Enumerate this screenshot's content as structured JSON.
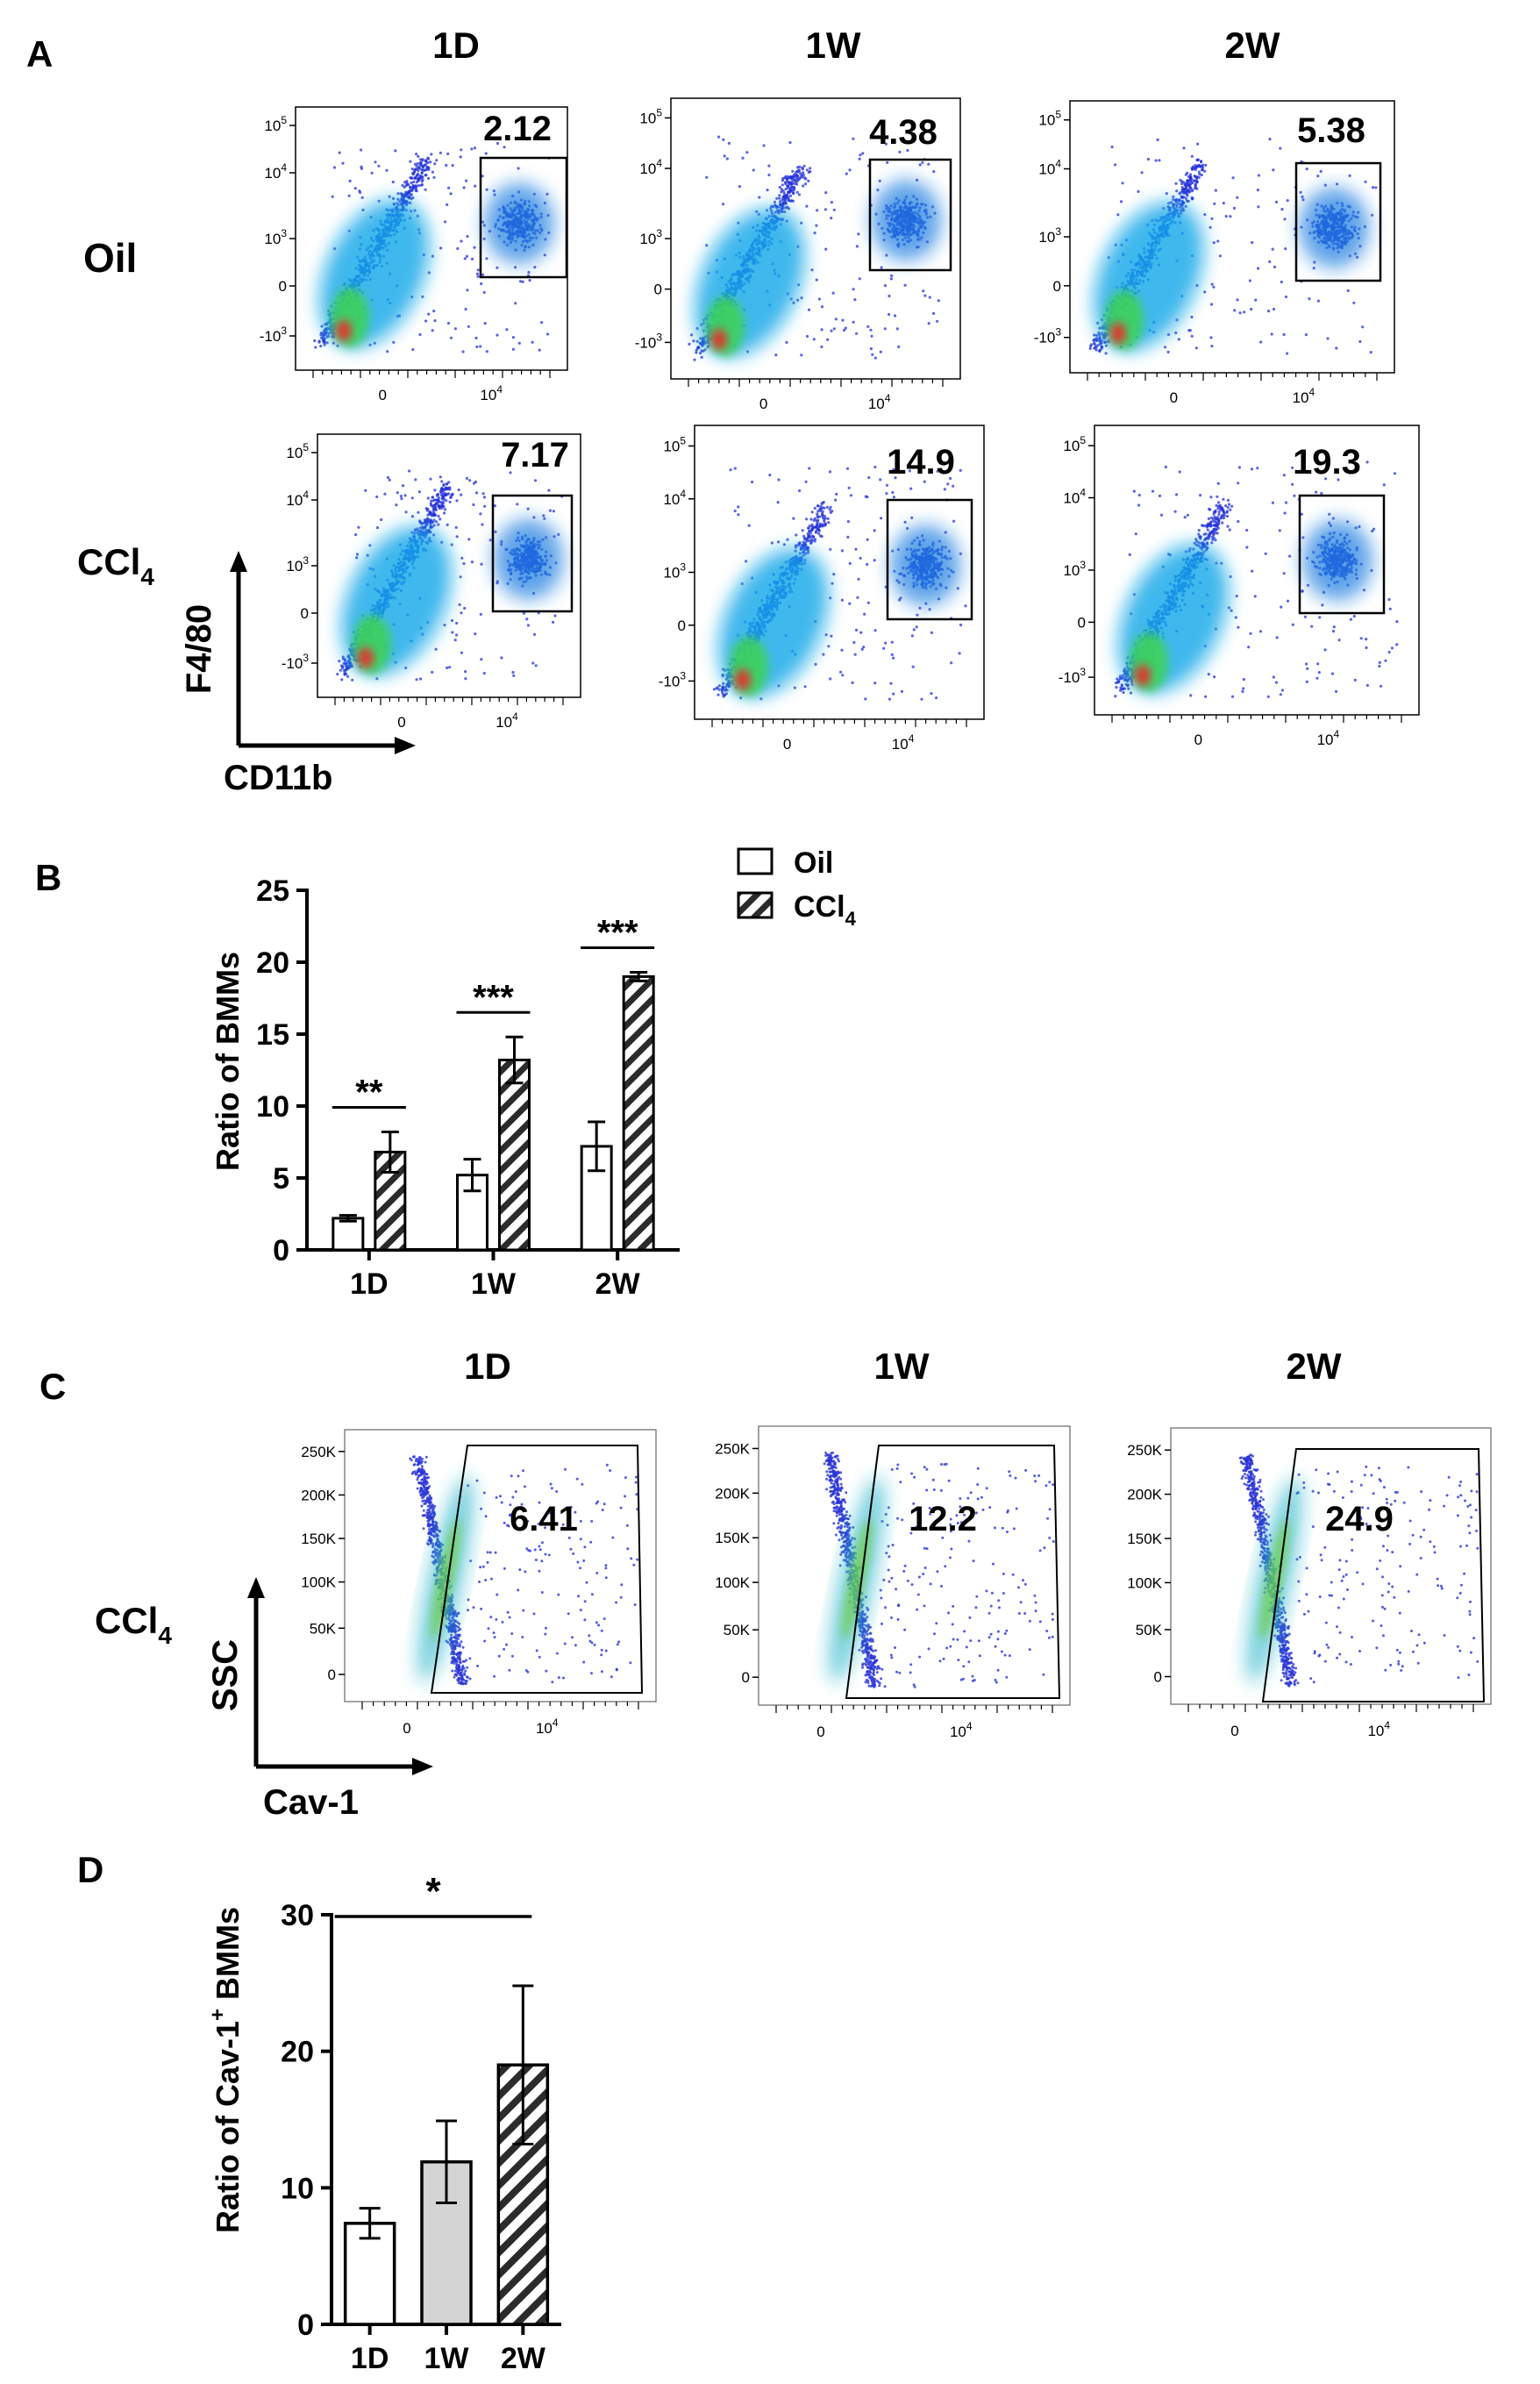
{
  "panels": {
    "A": "A",
    "B": "B",
    "C": "C",
    "D": "D"
  },
  "panel_a": {
    "columns": [
      "1D",
      "1W",
      "2W"
    ],
    "rows": [
      {
        "label_main": "Oil",
        "label_sub": "",
        "gates": [
          "2.12",
          "4.38",
          "5.38"
        ]
      },
      {
        "label_main": "CCl",
        "label_sub": "4",
        "gates": [
          "7.17",
          "14.9",
          "19.3"
        ]
      }
    ],
    "y_axis": "F4/80",
    "x_axis": "CD11b",
    "y_ticks": [
      {
        "base": "10",
        "exp": "5"
      },
      {
        "base": "10",
        "exp": "4"
      },
      {
        "base": "10",
        "exp": "3"
      },
      {
        "base": "0",
        "exp": ""
      },
      {
        "base": "-10",
        "exp": "3"
      }
    ],
    "x_ticks": [
      {
        "base": "0",
        "exp": ""
      },
      {
        "base": "10",
        "exp": "4"
      }
    ]
  },
  "panel_c": {
    "columns": [
      "1D",
      "1W",
      "2W"
    ],
    "row_label_main": "CCl",
    "row_label_sub": "4",
    "gates": [
      "6.41",
      "12.2",
      "24.9"
    ],
    "y_axis": "SSC",
    "x_axis": "Cav-1",
    "y_ticks": [
      "250K",
      "200K",
      "150K",
      "100K",
      "50K",
      "0"
    ],
    "x_ticks": [
      {
        "base": "0",
        "exp": ""
      },
      {
        "base": "10",
        "exp": "4"
      }
    ]
  },
  "chart_data": [
    {
      "type": "bar",
      "panel": "B",
      "categories": [
        "1D",
        "1W",
        "2W"
      ],
      "series": [
        {
          "name": "Oil",
          "values": [
            2.2,
            5.2,
            7.2
          ],
          "errors": [
            0.2,
            1.1,
            1.7
          ],
          "pattern": "open"
        },
        {
          "name": "CCl4",
          "values": [
            6.8,
            13.2,
            19.0
          ],
          "errors": [
            1.4,
            1.6,
            0.3
          ],
          "pattern": "hatched"
        }
      ],
      "legend": [
        {
          "main": "Oil",
          "sub": ""
        },
        {
          "main": "CCl",
          "sub": "4"
        }
      ],
      "ylabel": "Ratio of BMMs",
      "ylim": [
        0,
        25
      ],
      "yticks": [
        "0",
        "5",
        "10",
        "15",
        "20",
        "25"
      ],
      "significance": [
        "**",
        "***",
        "***"
      ],
      "legend_position": "top-right"
    },
    {
      "type": "bar",
      "panel": "D",
      "categories": [
        "1D",
        "1W",
        "2W"
      ],
      "values": [
        7.4,
        11.9,
        19.0
      ],
      "errors": [
        1.1,
        3.0,
        5.8
      ],
      "fills": [
        "#ffffff",
        "#d4d4d4",
        "hatched"
      ],
      "ylabel_main": "Ratio of Cav-1",
      "ylabel_sup": "+",
      "ylabel_tail": " BMMs",
      "ylim": [
        0,
        30
      ],
      "yticks": [
        "0",
        "10",
        "20",
        "30"
      ],
      "significance": "*"
    }
  ]
}
